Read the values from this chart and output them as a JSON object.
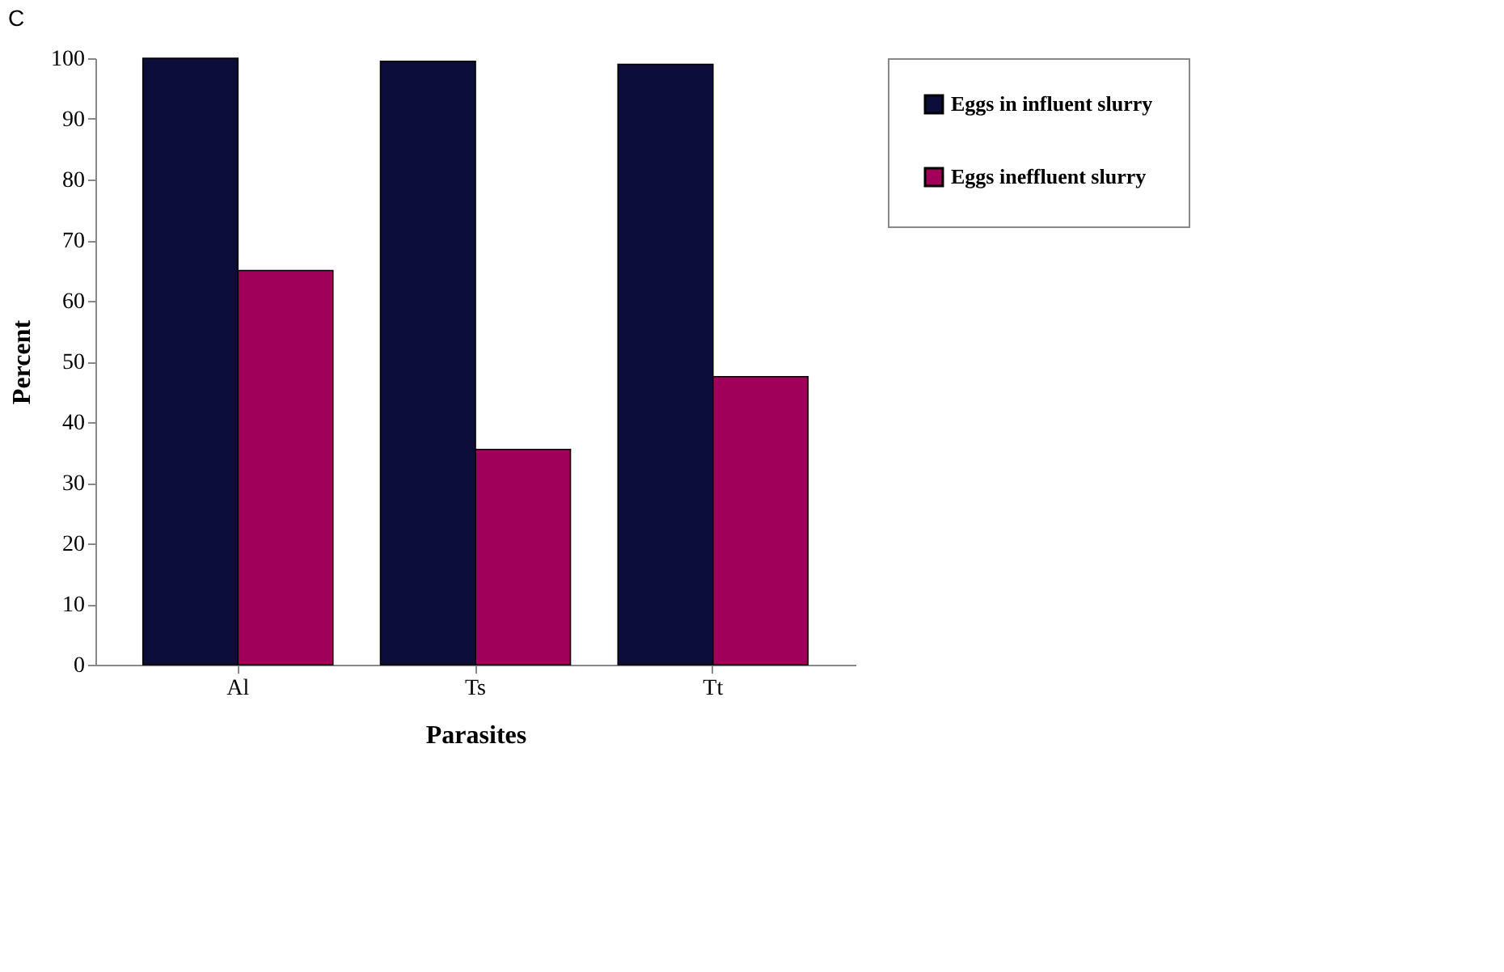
{
  "chart_data": {
    "type": "bar",
    "title": "C",
    "xlabel": "Parasites",
    "ylabel": "Percent",
    "categories": [
      "Al",
      "Ts",
      "Tt"
    ],
    "series": [
      {
        "name": "Eggs in influent slurry",
        "color": "#0d0d3a",
        "values": [
          100,
          99.5,
          99
        ]
      },
      {
        "name": "Eggs ineffluent slurry",
        "color": "#a0005a",
        "values": [
          65,
          35.5,
          47.5
        ]
      }
    ],
    "ylim": [
      0,
      100
    ],
    "yticks": [
      0,
      10,
      20,
      30,
      40,
      50,
      60,
      70,
      80,
      90,
      100
    ],
    "grid": false,
    "legend": "right"
  }
}
